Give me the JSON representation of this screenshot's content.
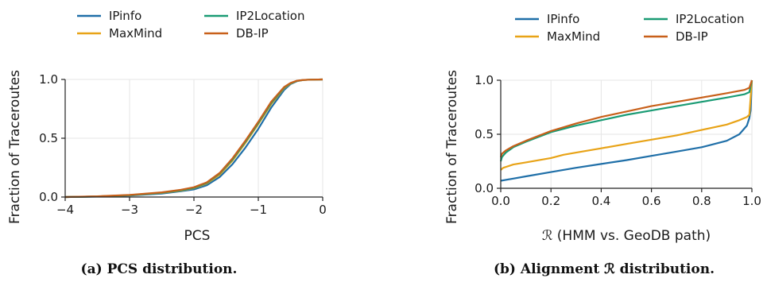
{
  "colors": {
    "IPinfo": "#1f6fa8",
    "MaxMind": "#e8a317",
    "IP2Location": "#1a9b74",
    "DB-IP": "#c8601a",
    "grid": "#e6e6e6",
    "axis": "#222222"
  },
  "chart_data": [
    {
      "type": "line",
      "caption": "(a) PCS distribution.",
      "xlabel": "PCS",
      "ylabel": "Fraction of Traceroutes",
      "xlim": [
        -4,
        0
      ],
      "ylim": [
        0,
        1
      ],
      "xticks": [
        -4,
        -3,
        -2,
        -1,
        0
      ],
      "xtick_labels": [
        "−4",
        "−3",
        "−2",
        "−1",
        "0"
      ],
      "yticks": [
        0,
        0.5,
        1
      ],
      "ytick_labels": [
        "0.0",
        "0.5",
        "1.0"
      ],
      "grid": true,
      "legend": [
        "IPinfo",
        "MaxMind",
        "IP2Location",
        "DB-IP"
      ],
      "legend_position": "top",
      "series": [
        {
          "name": "IPinfo",
          "x": [
            -4,
            -3.5,
            -3,
            -2.5,
            -2.2,
            -2,
            -1.8,
            -1.6,
            -1.4,
            -1.2,
            -1.0,
            -0.8,
            -0.6,
            -0.5,
            -0.4,
            -0.3,
            -0.2,
            0
          ],
          "y": [
            0.0,
            0.004,
            0.012,
            0.03,
            0.05,
            0.065,
            0.1,
            0.17,
            0.28,
            0.42,
            0.58,
            0.76,
            0.91,
            0.96,
            0.985,
            0.995,
            0.998,
            1.0
          ]
        },
        {
          "name": "MaxMind",
          "x": [
            -4,
            -3.5,
            -3,
            -2.5,
            -2.2,
            -2,
            -1.8,
            -1.6,
            -1.4,
            -1.2,
            -1.0,
            -0.8,
            -0.6,
            -0.5,
            -0.4,
            -0.3,
            -0.2,
            0
          ],
          "y": [
            0.0,
            0.005,
            0.015,
            0.035,
            0.055,
            0.075,
            0.115,
            0.19,
            0.31,
            0.46,
            0.62,
            0.79,
            0.925,
            0.965,
            0.987,
            0.995,
            0.998,
            1.0
          ]
        },
        {
          "name": "IP2Location",
          "x": [
            -4,
            -3.5,
            -3,
            -2.5,
            -2.2,
            -2,
            -1.8,
            -1.6,
            -1.4,
            -1.2,
            -1.0,
            -0.8,
            -0.6,
            -0.5,
            -0.4,
            -0.3,
            -0.2,
            0
          ],
          "y": [
            0.0,
            0.005,
            0.016,
            0.037,
            0.058,
            0.078,
            0.12,
            0.2,
            0.32,
            0.47,
            0.63,
            0.8,
            0.93,
            0.967,
            0.988,
            0.995,
            0.998,
            1.0
          ]
        },
        {
          "name": "DB-IP",
          "x": [
            -4,
            -3.5,
            -3,
            -2.5,
            -2.2,
            -2,
            -1.8,
            -1.6,
            -1.4,
            -1.2,
            -1.0,
            -0.8,
            -0.6,
            -0.5,
            -0.4,
            -0.3,
            -0.2,
            0
          ],
          "y": [
            0.0,
            0.006,
            0.018,
            0.04,
            0.062,
            0.083,
            0.125,
            0.205,
            0.33,
            0.48,
            0.64,
            0.81,
            0.935,
            0.97,
            0.989,
            0.996,
            0.998,
            1.0
          ]
        }
      ]
    },
    {
      "type": "line",
      "caption": "(b) Alignment ℛ distribution.",
      "xlabel": "ℛ (HMM vs. GeoDB path)",
      "ylabel": "Fraction of Traceroutes",
      "xlim": [
        0,
        1
      ],
      "ylim": [
        0,
        1
      ],
      "xticks": [
        0,
        0.2,
        0.4,
        0.6,
        0.8,
        1.0
      ],
      "xtick_labels": [
        "0.0",
        "0.2",
        "0.4",
        "0.6",
        "0.8",
        "1.0"
      ],
      "yticks": [
        0,
        0.5,
        1
      ],
      "ytick_labels": [
        "0.0",
        "0.5",
        "1.0"
      ],
      "grid": true,
      "legend": [
        "IPinfo",
        "MaxMind",
        "IP2Location",
        "DB-IP"
      ],
      "legend_position": "top",
      "series": [
        {
          "name": "IPinfo",
          "x": [
            0,
            0.05,
            0.1,
            0.2,
            0.3,
            0.4,
            0.5,
            0.6,
            0.7,
            0.8,
            0.9,
            0.95,
            0.98,
            0.99,
            0.995,
            1.0
          ],
          "y": [
            0.07,
            0.09,
            0.11,
            0.15,
            0.19,
            0.225,
            0.26,
            0.3,
            0.34,
            0.38,
            0.44,
            0.5,
            0.58,
            0.65,
            0.72,
            1.0
          ]
        },
        {
          "name": "MaxMind",
          "x": [
            0,
            0.01,
            0.05,
            0.1,
            0.2,
            0.25,
            0.3,
            0.4,
            0.5,
            0.6,
            0.7,
            0.8,
            0.9,
            0.95,
            0.98,
            0.99,
            1.0
          ],
          "y": [
            0.17,
            0.19,
            0.22,
            0.24,
            0.28,
            0.31,
            0.33,
            0.37,
            0.41,
            0.45,
            0.49,
            0.54,
            0.59,
            0.63,
            0.66,
            0.68,
            1.0
          ]
        },
        {
          "name": "IP2Location",
          "x": [
            0,
            0.005,
            0.02,
            0.05,
            0.1,
            0.2,
            0.3,
            0.4,
            0.5,
            0.6,
            0.7,
            0.8,
            0.9,
            0.97,
            0.99,
            1.0
          ],
          "y": [
            0.25,
            0.29,
            0.33,
            0.38,
            0.43,
            0.52,
            0.58,
            0.63,
            0.68,
            0.72,
            0.76,
            0.8,
            0.84,
            0.87,
            0.89,
            1.0
          ]
        },
        {
          "name": "DB-IP",
          "x": [
            0,
            0.005,
            0.02,
            0.05,
            0.1,
            0.2,
            0.3,
            0.4,
            0.5,
            0.6,
            0.7,
            0.8,
            0.9,
            0.97,
            0.99,
            1.0
          ],
          "y": [
            0.29,
            0.32,
            0.35,
            0.39,
            0.44,
            0.53,
            0.6,
            0.66,
            0.71,
            0.76,
            0.8,
            0.84,
            0.88,
            0.91,
            0.93,
            1.0
          ]
        }
      ]
    }
  ]
}
